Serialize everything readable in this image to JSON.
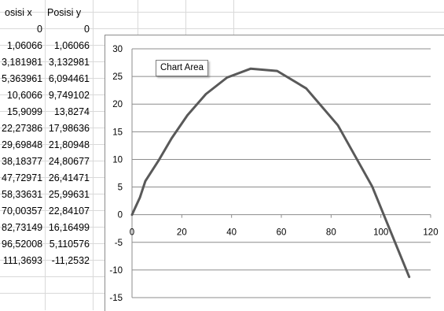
{
  "sheet": {
    "headers": [
      "osisi x",
      "Posisi y"
    ],
    "rows": [
      [
        "0",
        "0"
      ],
      [
        "1,06066",
        "1,06066"
      ],
      [
        "3,181981",
        "3,132981"
      ],
      [
        "5,363961",
        "6,094461"
      ],
      [
        "10,6066",
        "9,749102"
      ],
      [
        "15,9099",
        "13,8274"
      ],
      [
        "22,27386",
        "17,98636"
      ],
      [
        "29,69848",
        "21,80948"
      ],
      [
        "38,18377",
        "24,80677"
      ],
      [
        "47,72971",
        "26,41471"
      ],
      [
        "58,33631",
        "25,99631"
      ],
      [
        "70,00357",
        "22,84107"
      ],
      [
        "82,73149",
        "16,16499"
      ],
      [
        "96,52008",
        "5,110576"
      ],
      [
        "111,3693",
        "-11,2532"
      ]
    ]
  },
  "tooltip": {
    "text": "Chart Area"
  },
  "chart_data": {
    "type": "line",
    "title": "",
    "xlabel": "",
    "ylabel": "",
    "x": [
      0,
      1.06066,
      3.181981,
      5.363961,
      10.6066,
      15.9099,
      22.27386,
      29.69848,
      38.18377,
      47.72971,
      58.33631,
      70.00357,
      82.73149,
      96.52008,
      111.3693
    ],
    "series": [
      {
        "values": [
          0,
          1.06066,
          3.132981,
          6.094461,
          9.749102,
          13.8274,
          17.98636,
          21.80948,
          24.80677,
          26.41471,
          25.99631,
          22.84107,
          16.16499,
          5.110576,
          -11.2532
        ]
      }
    ],
    "xlim": [
      0,
      120
    ],
    "ylim": [
      -15,
      30
    ],
    "xticks": [
      "0",
      "20",
      "40",
      "60",
      "80",
      "100",
      "120"
    ],
    "yticks": [
      "-15",
      "-10",
      "-5",
      "0",
      "5",
      "10",
      "15",
      "20",
      "25",
      "30"
    ],
    "grid": true,
    "legend": "none",
    "line_color": "#595959",
    "grid_color": "#8c8c8c"
  }
}
